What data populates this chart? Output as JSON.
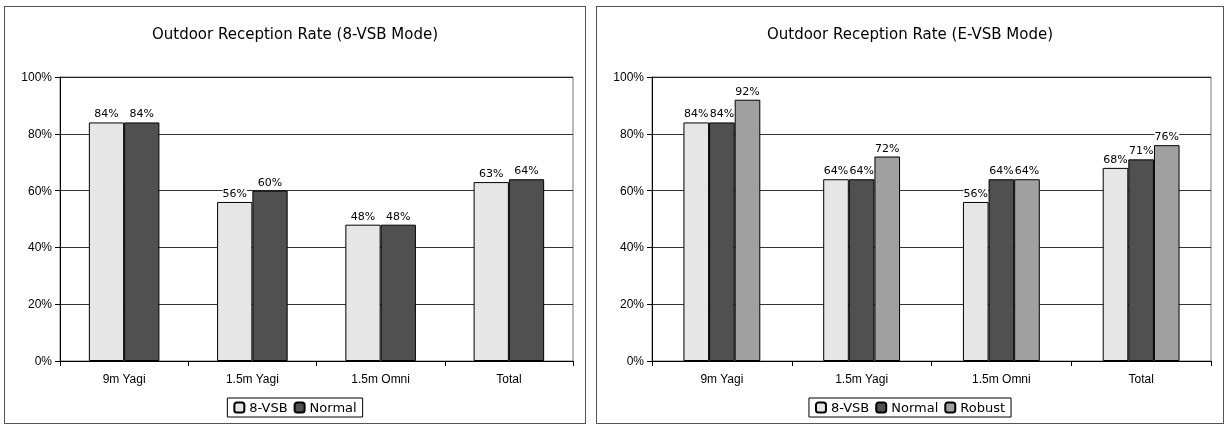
{
  "chart_data": [
    {
      "type": "bar",
      "title": "Outdoor Reception Rate (8-VSB Mode)",
      "categories": [
        "9m Yagi",
        "1.5m Yagi",
        "1.5m Omni",
        "Total"
      ],
      "series": [
        {
          "name": "8-VSB",
          "color": "#e6e6e6",
          "values": [
            84,
            56,
            48,
            63
          ],
          "value_labels": [
            "84%",
            "56%",
            "48%",
            "63%"
          ]
        },
        {
          "name": "Normal",
          "color": "#505050",
          "values": [
            84,
            60,
            48,
            64
          ],
          "value_labels": [
            "84%",
            "60%",
            "48%",
            "64%"
          ]
        }
      ],
      "ylim": [
        0,
        100
      ],
      "yticks": [
        {
          "value": 0,
          "label": "0%"
        },
        {
          "value": 20,
          "label": "20%"
        },
        {
          "value": 40,
          "label": "40%"
        },
        {
          "value": 60,
          "label": "60%"
        },
        {
          "value": 80,
          "label": "80%"
        },
        {
          "value": 100,
          "label": "100%"
        }
      ],
      "grid": "y",
      "legend": "bottom"
    },
    {
      "type": "bar",
      "title": "Outdoor Reception Rate (E-VSB Mode)",
      "categories": [
        "9m Yagi",
        "1.5m Yagi",
        "1.5m Omni",
        "Total"
      ],
      "series": [
        {
          "name": "8-VSB",
          "color": "#e6e6e6",
          "values": [
            84,
            64,
            56,
            68
          ],
          "value_labels": [
            "84%",
            "64%",
            "56%",
            "68%"
          ]
        },
        {
          "name": "Normal",
          "color": "#505050",
          "values": [
            84,
            64,
            64,
            71
          ],
          "value_labels": [
            "84%",
            "64%",
            "64%",
            "71%"
          ]
        },
        {
          "name": "Robust",
          "color": "#a0a0a0",
          "values": [
            92,
            72,
            64,
            76
          ],
          "value_labels": [
            "92%",
            "72%",
            "64%",
            "76%"
          ]
        }
      ],
      "ylim": [
        0,
        100
      ],
      "yticks": [
        {
          "value": 0,
          "label": "0%"
        },
        {
          "value": 20,
          "label": "20%"
        },
        {
          "value": 40,
          "label": "40%"
        },
        {
          "value": 60,
          "label": "60%"
        },
        {
          "value": 80,
          "label": "80%"
        },
        {
          "value": 100,
          "label": "100%"
        }
      ],
      "grid": "y",
      "legend": "bottom"
    }
  ]
}
